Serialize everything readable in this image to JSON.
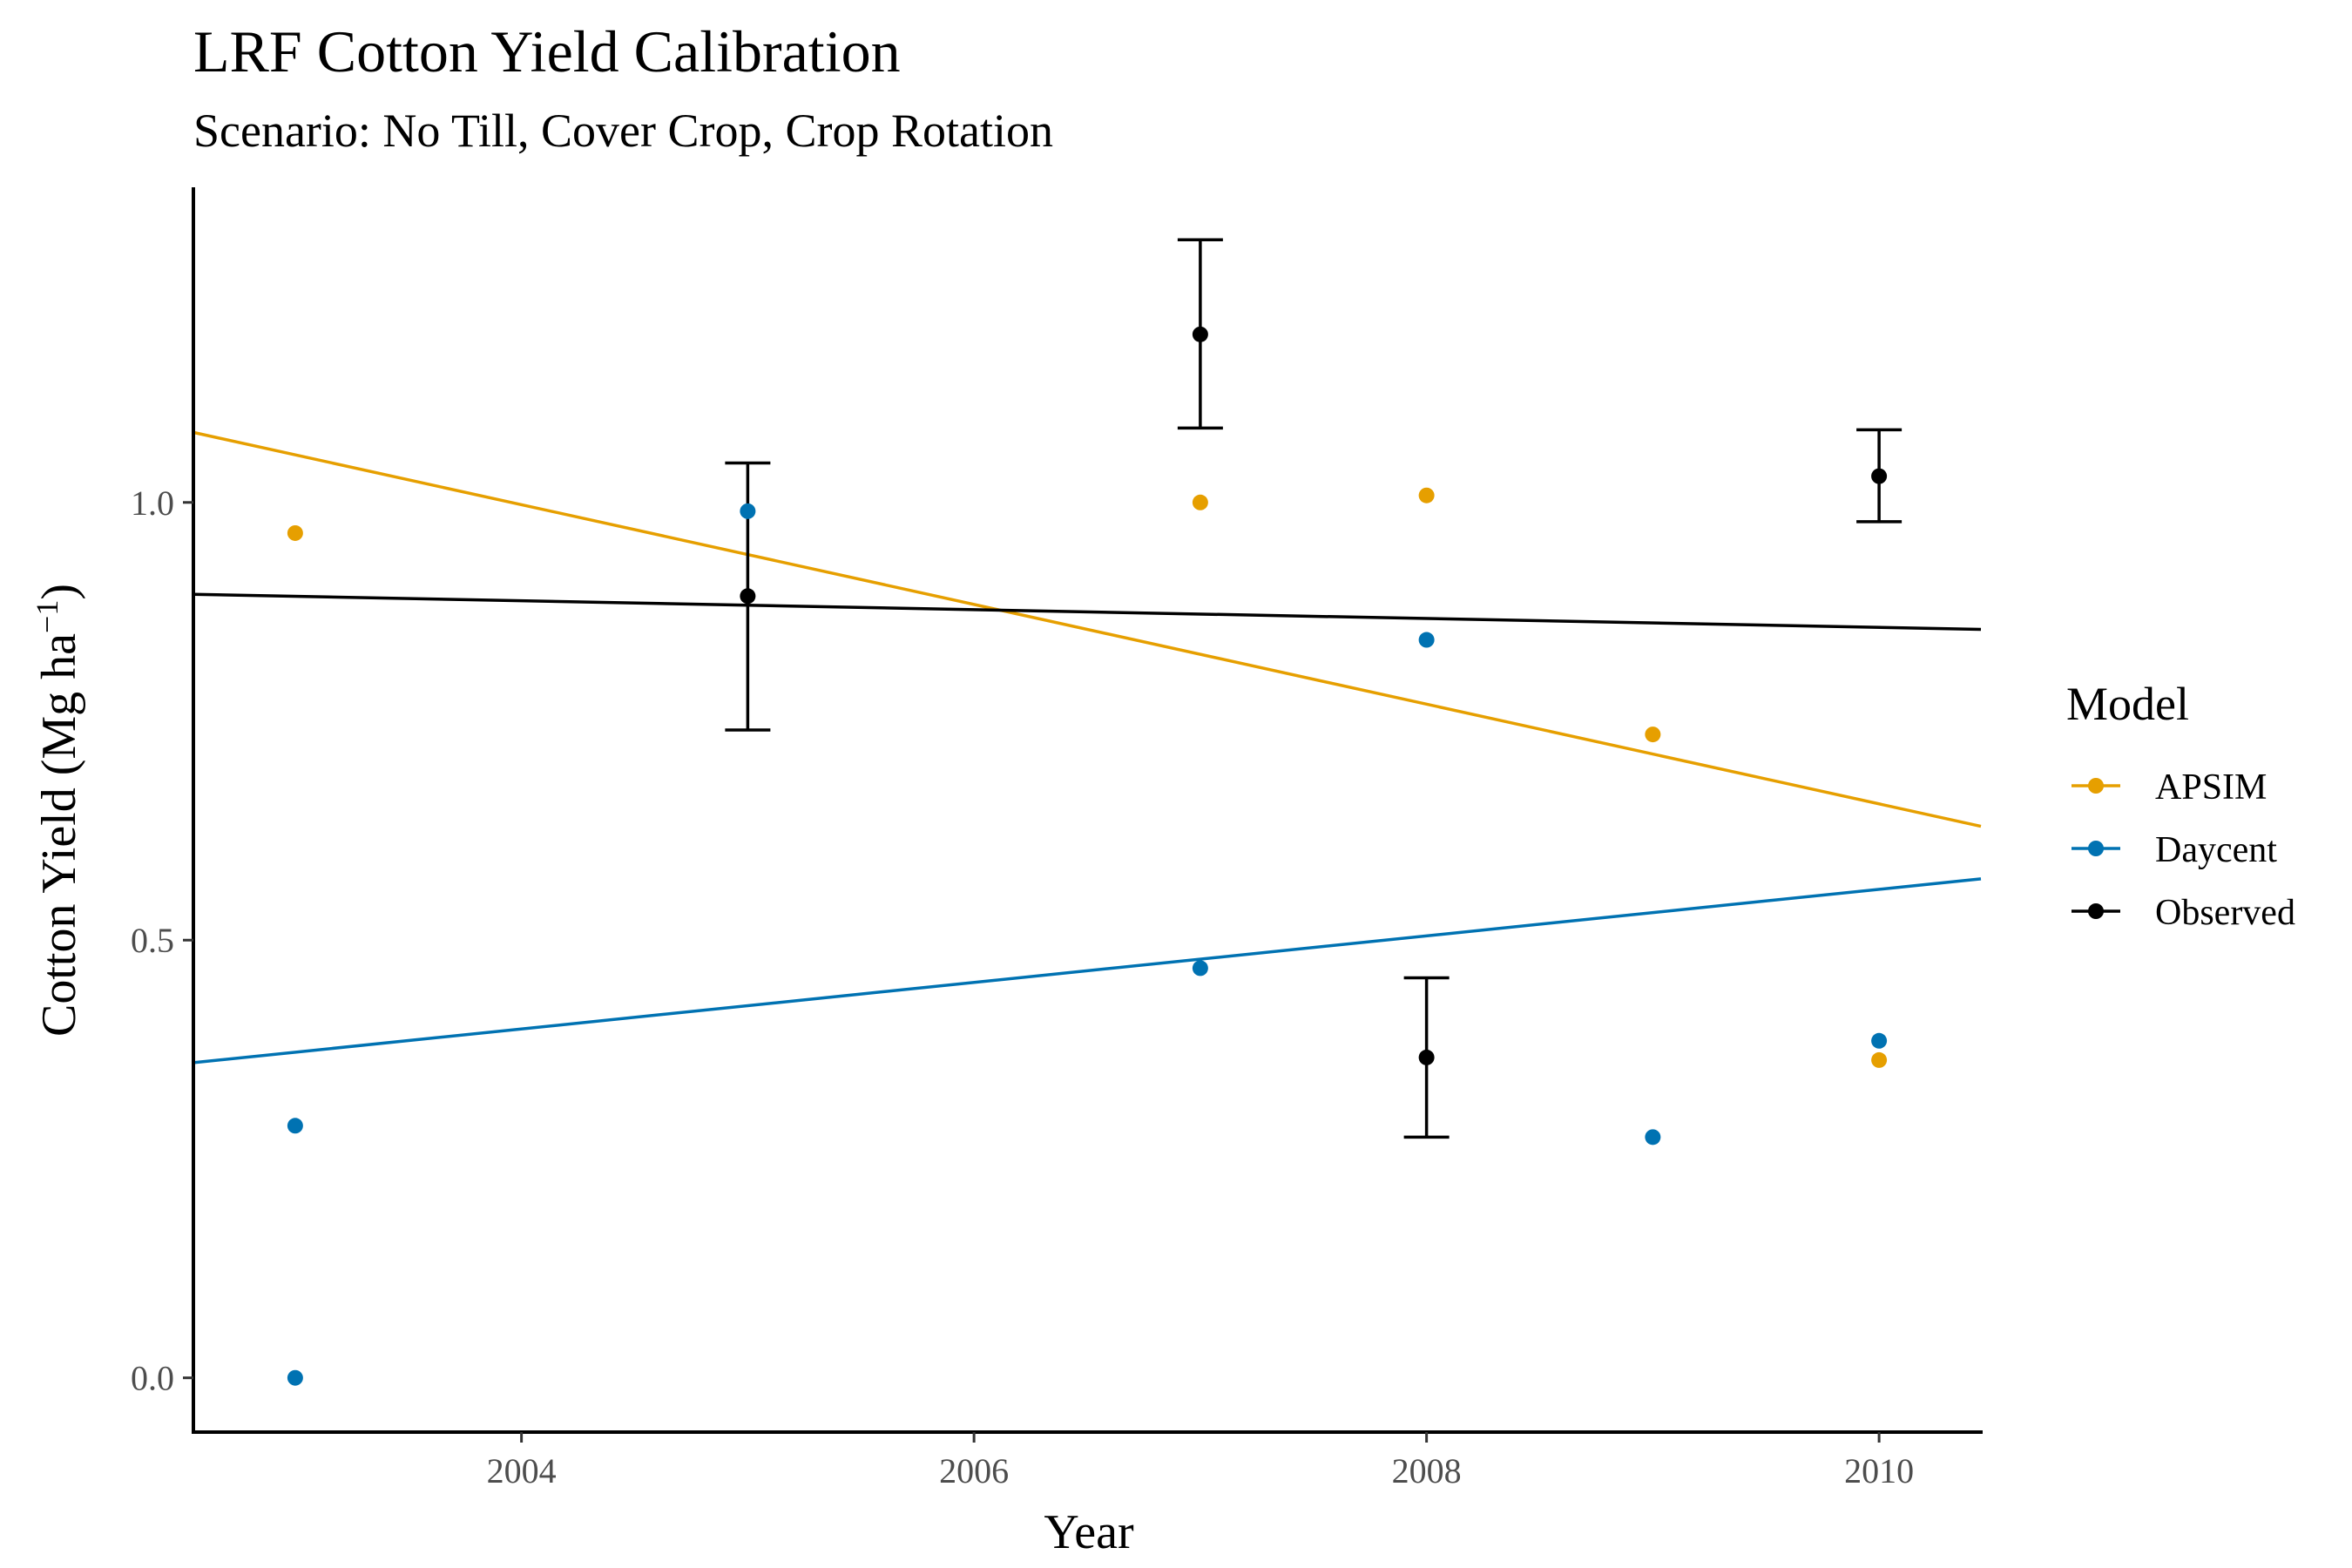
{
  "chart_data": {
    "type": "scatter",
    "title": "LRF Cotton Yield Calibration",
    "subtitle": "Scenario: No Till, Cover Crop, Crop Rotation",
    "xlabel": "Year",
    "ylabel": "Cotton Yield (Mg ha",
    "ylabel_superscript": "−1",
    "ylabel_close": ")",
    "xlim": [
      2002.55,
      2010.45
    ],
    "ylim": [
      -0.062,
      1.36
    ],
    "x_ticks": [
      2004,
      2006,
      2008,
      2010
    ],
    "y_ticks": [
      0.0,
      0.5,
      1.0
    ],
    "y_tick_labels": [
      "0.0",
      "0.5",
      "1.0"
    ],
    "grid": false,
    "legend": {
      "title": "Model",
      "position": "right",
      "entries": [
        "APSIM",
        "Daycent",
        "Observed"
      ]
    },
    "series": [
      {
        "name": "APSIM",
        "color": "#E69F00",
        "points": [
          {
            "x": 2003,
            "y": 0.965
          },
          {
            "x": 2007,
            "y": 1.0
          },
          {
            "x": 2008,
            "y": 1.008
          },
          {
            "x": 2009,
            "y": 0.735
          },
          {
            "x": 2010,
            "y": 0.363
          }
        ],
        "trend": {
          "x0": 2002.55,
          "y0": 1.08,
          "x1": 2010.45,
          "y1": 0.63
        }
      },
      {
        "name": "Daycent",
        "color": "#0072B2",
        "points": [
          {
            "x": 2003,
            "y": 0.288
          },
          {
            "x": 2003,
            "y": 0.0
          },
          {
            "x": 2005,
            "y": 0.99
          },
          {
            "x": 2007,
            "y": 0.468
          },
          {
            "x": 2008,
            "y": 0.843
          },
          {
            "x": 2009,
            "y": 0.275
          },
          {
            "x": 2010,
            "y": 0.385
          }
        ],
        "trend": {
          "x0": 2002.55,
          "y0": 0.36,
          "x1": 2010.45,
          "y1": 0.57
        }
      },
      {
        "name": "Observed",
        "color": "#000000",
        "points": [
          {
            "x": 2005,
            "y": 0.893,
            "lower": 0.74,
            "upper": 1.045
          },
          {
            "x": 2007,
            "y": 1.192,
            "lower": 1.085,
            "upper": 1.3
          },
          {
            "x": 2008,
            "y": 0.366,
            "lower": 0.275,
            "upper": 0.457
          },
          {
            "x": 2010,
            "y": 1.03,
            "lower": 0.978,
            "upper": 1.083
          }
        ],
        "trend": {
          "x0": 2002.55,
          "y0": 0.895,
          "x1": 2010.45,
          "y1": 0.855
        }
      }
    ]
  }
}
